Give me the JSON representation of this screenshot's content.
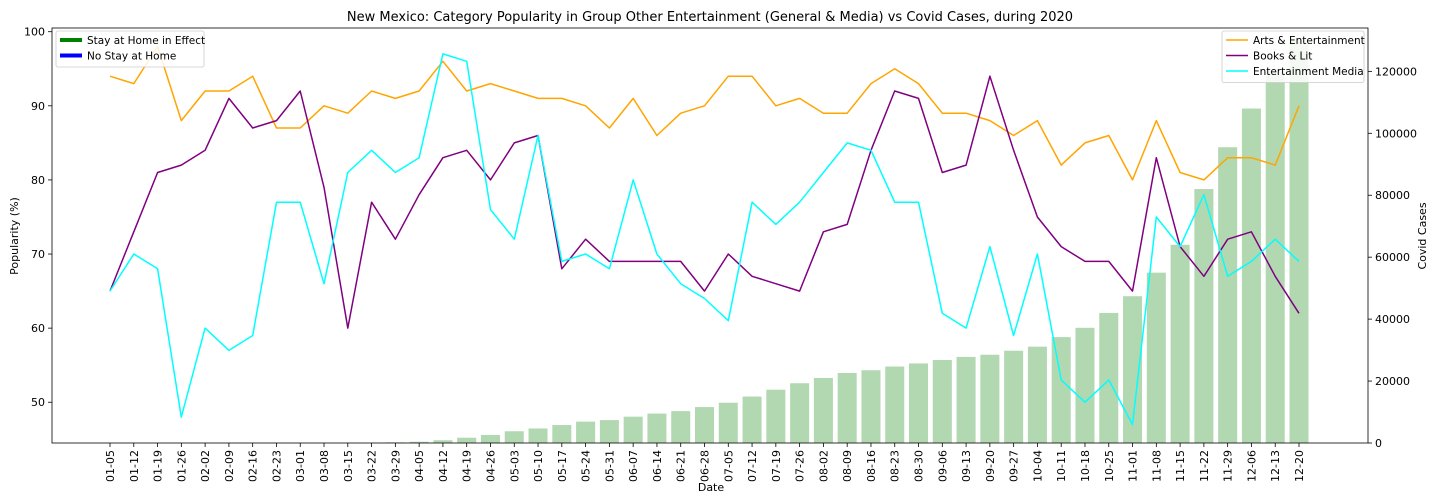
{
  "chart_data": {
    "type": "line",
    "title": "New Mexico: Category Popularity in Group Other Entertainment (General & Media) vs Covid Cases, during 2020",
    "xlabel": "Date",
    "ylabel": "Popularity (%)",
    "y2label": "Covid Cases",
    "ylim": [
      44.5,
      100.5
    ],
    "y2lim": [
      0,
      134000
    ],
    "yticks": [
      "50",
      "60",
      "70",
      "80",
      "90",
      "100"
    ],
    "y2ticks": [
      "0",
      "20000",
      "40000",
      "60000",
      "80000",
      "100000",
      "120000"
    ],
    "x": [
      "01-05",
      "01-12",
      "01-19",
      "01-26",
      "02-02",
      "02-09",
      "02-16",
      "02-23",
      "03-01",
      "03-08",
      "03-15",
      "03-22",
      "03-29",
      "04-05",
      "04-12",
      "04-19",
      "04-26",
      "05-03",
      "05-10",
      "05-17",
      "05-24",
      "05-31",
      "06-07",
      "06-14",
      "06-21",
      "06-28",
      "07-05",
      "07-12",
      "07-19",
      "07-26",
      "08-02",
      "08-09",
      "08-16",
      "08-23",
      "08-30",
      "09-06",
      "09-13",
      "09-20",
      "09-27",
      "10-04",
      "10-11",
      "10-18",
      "10-25",
      "11-01",
      "11-08",
      "11-15",
      "11-22",
      "11-29",
      "12-06",
      "12-13",
      "12-20"
    ],
    "series": [
      {
        "name": "Arts & Entertainment",
        "color": "#ffa500",
        "values": [
          94,
          93,
          98,
          88,
          92,
          92,
          94,
          87,
          87,
          90,
          89,
          92,
          91,
          92,
          96,
          92,
          93,
          92,
          91,
          91,
          90,
          87,
          91,
          86,
          89,
          90,
          94,
          94,
          90,
          91,
          89,
          89,
          93,
          95,
          93,
          89,
          89,
          88,
          86,
          88,
          82,
          85,
          86,
          80,
          88,
          81,
          80,
          83,
          83,
          82,
          90
        ]
      },
      {
        "name": "Books & Lit",
        "color": "#800080",
        "values": [
          65,
          73,
          81,
          82,
          84,
          91,
          87,
          88,
          92,
          79,
          60,
          77,
          72,
          78,
          83,
          84,
          80,
          85,
          86,
          68,
          72,
          69,
          69,
          69,
          69,
          65,
          70,
          67,
          66,
          65,
          73,
          74,
          84,
          92,
          91,
          81,
          82,
          94,
          84,
          75,
          71,
          69,
          69,
          65,
          83,
          71,
          67,
          72,
          73,
          67,
          62
        ]
      },
      {
        "name": "Entertainment Media",
        "color": "#00ffff",
        "values": [
          65,
          70,
          68,
          48,
          60,
          57,
          59,
          77,
          77,
          66,
          81,
          84,
          81,
          83,
          97,
          96,
          76,
          72,
          86,
          69,
          70,
          68,
          80,
          70,
          66,
          64,
          61,
          77,
          74,
          77,
          81,
          85,
          84,
          77,
          77,
          62,
          60,
          71,
          59,
          70,
          53,
          50,
          53,
          47,
          75,
          71,
          78,
          67,
          69,
          72,
          69
        ]
      }
    ],
    "bars": {
      "name": "Covid Cases",
      "color": "#b2d8b2",
      "values": [
        0,
        0,
        0,
        0,
        0,
        0,
        0,
        0,
        0,
        0,
        0,
        0,
        200,
        400,
        900,
        1700,
        2600,
        3800,
        4700,
        5800,
        6900,
        7400,
        8500,
        9500,
        10300,
        11600,
        13000,
        15000,
        17200,
        19300,
        21000,
        22600,
        23500,
        24700,
        25700,
        26800,
        27800,
        28500,
        29800,
        31100,
        34200,
        37200,
        42000,
        47400,
        55000,
        64000,
        82000,
        95500,
        108000,
        120000,
        130000
      ]
    },
    "grid": false,
    "legend_left": {
      "placement": "top-left",
      "items": [
        {
          "label": "Stay at Home in Effect",
          "color": "#008000"
        },
        {
          "label": "No Stay at Home",
          "color": "#0000ff"
        }
      ]
    },
    "legend_right": {
      "placement": "top-right",
      "items": [
        {
          "label": "Arts & Entertainment",
          "color": "#ffa500"
        },
        {
          "label": "Books & Lit",
          "color": "#800080"
        },
        {
          "label": "Entertainment Media",
          "color": "#00ffff"
        }
      ]
    }
  }
}
